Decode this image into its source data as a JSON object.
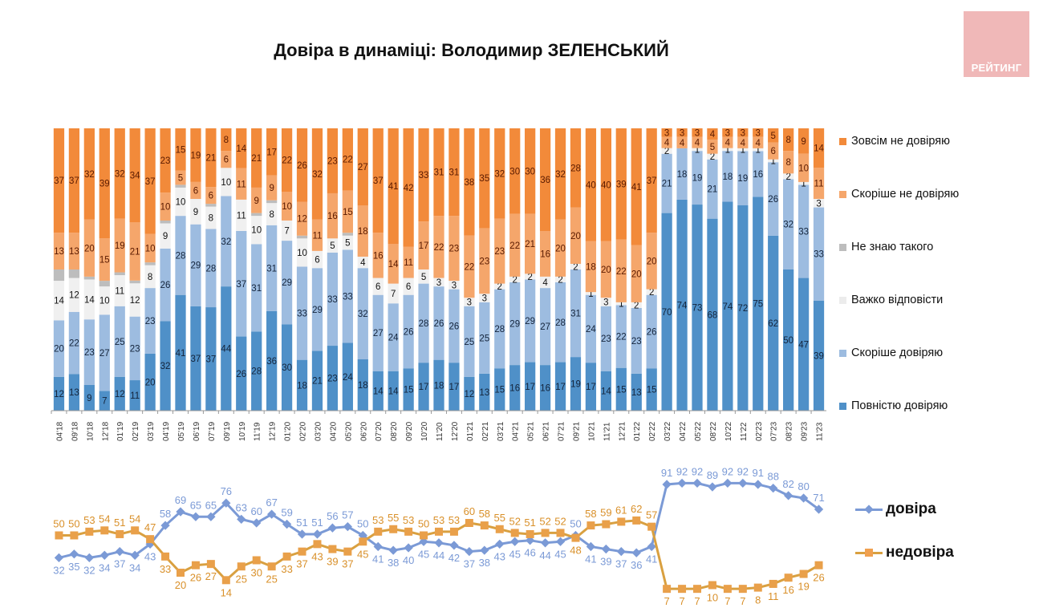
{
  "header": {
    "title": "Довіра в динаміці: Володимир ЗЕЛЕНСЬКИЙ",
    "logo_text": "РЕЙТИНГ"
  },
  "colors": {
    "full_distrust": "#f28a3a",
    "rather_distrust": "#f5a66b",
    "dont_know": "#bdbdbd",
    "hard_to_say": "#f0f0f0",
    "rather_trust": "#9dbce0",
    "full_trust": "#4f90c8",
    "trust_line": "#7b9ad6",
    "distrust_line": "#d9a040",
    "logo_bg": "#f0b8b8"
  },
  "chart_data": [
    {
      "type": "bar",
      "stacked": true,
      "title": "Довіра в динаміці: Володимир ЗЕЛЕНСЬКИЙ",
      "categories": [
        "04'18",
        "09'18",
        "10'18",
        "12'18",
        "01'19",
        "02'19",
        "03'19",
        "04'19",
        "05'19",
        "06'19",
        "07'19",
        "09'19",
        "10'19",
        "11'19",
        "12'19",
        "01'20",
        "02'20",
        "03'20",
        "04'20",
        "05'20",
        "06'20",
        "07'20",
        "08'20",
        "09'20",
        "10'20",
        "11'20",
        "12'20",
        "01'21",
        "02'21",
        "03'21",
        "04'21",
        "05'21",
        "06'21",
        "07'21",
        "09'21",
        "10'21",
        "11'21",
        "12'21",
        "01'22",
        "02'22",
        "03'22",
        "04'22",
        "05'22",
        "08'22",
        "10'22",
        "11'22",
        "02'23",
        "07'23",
        "08'23",
        "09'23",
        "11'23"
      ],
      "ylim": [
        0,
        100
      ],
      "legend_position": "right",
      "series": [
        {
          "name": "Повністю довіряю",
          "key": "full_trust",
          "values": [
            12,
            13,
            9,
            7,
            12,
            11,
            20,
            32,
            41,
            37,
            37,
            44,
            26,
            28,
            36,
            30,
            18,
            21,
            23,
            24,
            18,
            14,
            14,
            15,
            17,
            18,
            17,
            12,
            13,
            15,
            16,
            17,
            16,
            17,
            19,
            17,
            14,
            15,
            13,
            15,
            70,
            74,
            73,
            68,
            74,
            72,
            75,
            62,
            50,
            47,
            39
          ],
          "labels": [
            true,
            true,
            true,
            true,
            true,
            true,
            true,
            true,
            true,
            true,
            true,
            true,
            true,
            true,
            true,
            true,
            true,
            true,
            true,
            true,
            true,
            true,
            true,
            true,
            true,
            true,
            true,
            true,
            true,
            true,
            true,
            true,
            true,
            true,
            true,
            true,
            true,
            true,
            true,
            true,
            true,
            true,
            true,
            true,
            true,
            true,
            true,
            true,
            true,
            true,
            true
          ]
        },
        {
          "name": "Скоріше довіряю",
          "key": "rather_trust",
          "values": [
            20,
            22,
            23,
            27,
            25,
            23,
            23,
            26,
            28,
            29,
            28,
            32,
            37,
            31,
            31,
            29,
            33,
            29,
            33,
            33,
            32,
            27,
            24,
            26,
            28,
            26,
            26,
            25,
            25,
            28,
            29,
            29,
            27,
            28,
            31,
            24,
            23,
            22,
            23,
            26,
            21,
            18,
            19,
            21,
            18,
            19,
            16,
            26,
            32,
            33,
            33
          ]
        },
        {
          "name": "Важко відповісти",
          "key": "hard_to_say",
          "values": [
            14,
            12,
            14,
            10,
            11,
            12,
            8,
            9,
            10,
            9,
            8,
            10,
            11,
            10,
            8,
            7,
            10,
            6,
            5,
            5,
            4,
            6,
            7,
            6,
            5,
            3,
            3,
            3,
            3,
            2,
            2,
            2,
            4,
            2,
            2,
            1,
            3,
            1,
            2,
            2,
            2,
            0,
            1,
            2,
            1,
            1,
            1,
            1,
            2,
            1,
            3
          ]
        },
        {
          "name": "Не знаю такого",
          "key": "dont_know",
          "values": [
            4,
            3,
            1,
            2,
            1,
            1,
            1,
            1,
            1,
            0,
            1,
            0,
            0,
            1,
            1,
            0,
            1,
            0,
            0,
            1,
            0,
            0,
            0,
            0,
            0,
            0,
            0,
            0,
            0,
            0,
            0,
            0,
            0,
            0,
            0,
            0,
            0,
            0,
            0,
            0,
            0,
            0,
            0,
            0,
            0,
            0,
            0,
            0,
            0,
            0,
            0
          ]
        },
        {
          "name": "Скоріше не довіряю",
          "key": "rather_distrust",
          "values": [
            13,
            13,
            20,
            15,
            19,
            21,
            10,
            10,
            5,
            6,
            6,
            6,
            11,
            9,
            9,
            10,
            12,
            11,
            16,
            15,
            18,
            16,
            14,
            11,
            17,
            22,
            23,
            22,
            23,
            23,
            22,
            21,
            16,
            20,
            20,
            18,
            20,
            22,
            20,
            20,
            4,
            4,
            4,
            5,
            4,
            4,
            4,
            6,
            8,
            10,
            11
          ]
        },
        {
          "name": "Зовсім не довіряю",
          "key": "full_distrust",
          "values": [
            37,
            37,
            32,
            39,
            32,
            34,
            37,
            23,
            15,
            19,
            21,
            8,
            14,
            21,
            17,
            22,
            26,
            32,
            23,
            22,
            27,
            37,
            41,
            42,
            33,
            31,
            31,
            38,
            35,
            32,
            30,
            30,
            36,
            32,
            28,
            40,
            40,
            39,
            41,
            37,
            3,
            3,
            3,
            4,
            3,
            3,
            3,
            5,
            8,
            9,
            14
          ]
        }
      ]
    },
    {
      "type": "line",
      "categories": [
        "04'18",
        "09'18",
        "10'18",
        "12'18",
        "01'19",
        "02'19",
        "03'19",
        "04'19",
        "05'19",
        "06'19",
        "07'19",
        "09'19",
        "10'19",
        "11'19",
        "12'19",
        "01'20",
        "02'20",
        "03'20",
        "04'20",
        "05'20",
        "06'20",
        "07'20",
        "08'20",
        "09'20",
        "10'20",
        "11'20",
        "12'20",
        "01'21",
        "02'21",
        "03'21",
        "04'21",
        "05'21",
        "06'21",
        "07'21",
        "09'21",
        "10'21",
        "11'21",
        "12'21",
        "01'22",
        "02'22",
        "03'22",
        "04'22",
        "05'22",
        "08'22",
        "10'22",
        "11'22",
        "02'23",
        "07'23",
        "08'23",
        "09'23",
        "11'23"
      ],
      "legend_position": "right",
      "series": [
        {
          "name": "довіра",
          "key": "trust_line",
          "marker": "diamond",
          "values": [
            32,
            35,
            32,
            34,
            37,
            34,
            43,
            58,
            69,
            65,
            65,
            76,
            63,
            60,
            67,
            59,
            51,
            51,
            56,
            57,
            50,
            41,
            38,
            40,
            45,
            44,
            42,
            37,
            38,
            43,
            45,
            46,
            44,
            45,
            50,
            41,
            39,
            37,
            36,
            41,
            91,
            92,
            92,
            89,
            92,
            92,
            91,
            88,
            82,
            80,
            71
          ]
        },
        {
          "name": "недовіра",
          "key": "distrust_line",
          "marker": "square",
          "values": [
            50,
            50,
            53,
            54,
            51,
            54,
            47,
            33,
            20,
            26,
            27,
            14,
            25,
            30,
            25,
            33,
            37,
            43,
            39,
            37,
            45,
            53,
            55,
            53,
            50,
            53,
            53,
            60,
            58,
            55,
            52,
            51,
            52,
            52,
            48,
            58,
            59,
            61,
            62,
            57,
            7,
            7,
            7,
            10,
            7,
            7,
            8,
            11,
            16,
            19,
            26
          ]
        }
      ]
    }
  ],
  "bar_legend": [
    "Зовсім не довіряю",
    "Скоріше не довіряю",
    "Не знаю такого",
    "Важко відповісти",
    "Скоріше довіряю",
    "Повністю довіряю"
  ],
  "line_legend": [
    "довіра",
    "недовіра"
  ]
}
